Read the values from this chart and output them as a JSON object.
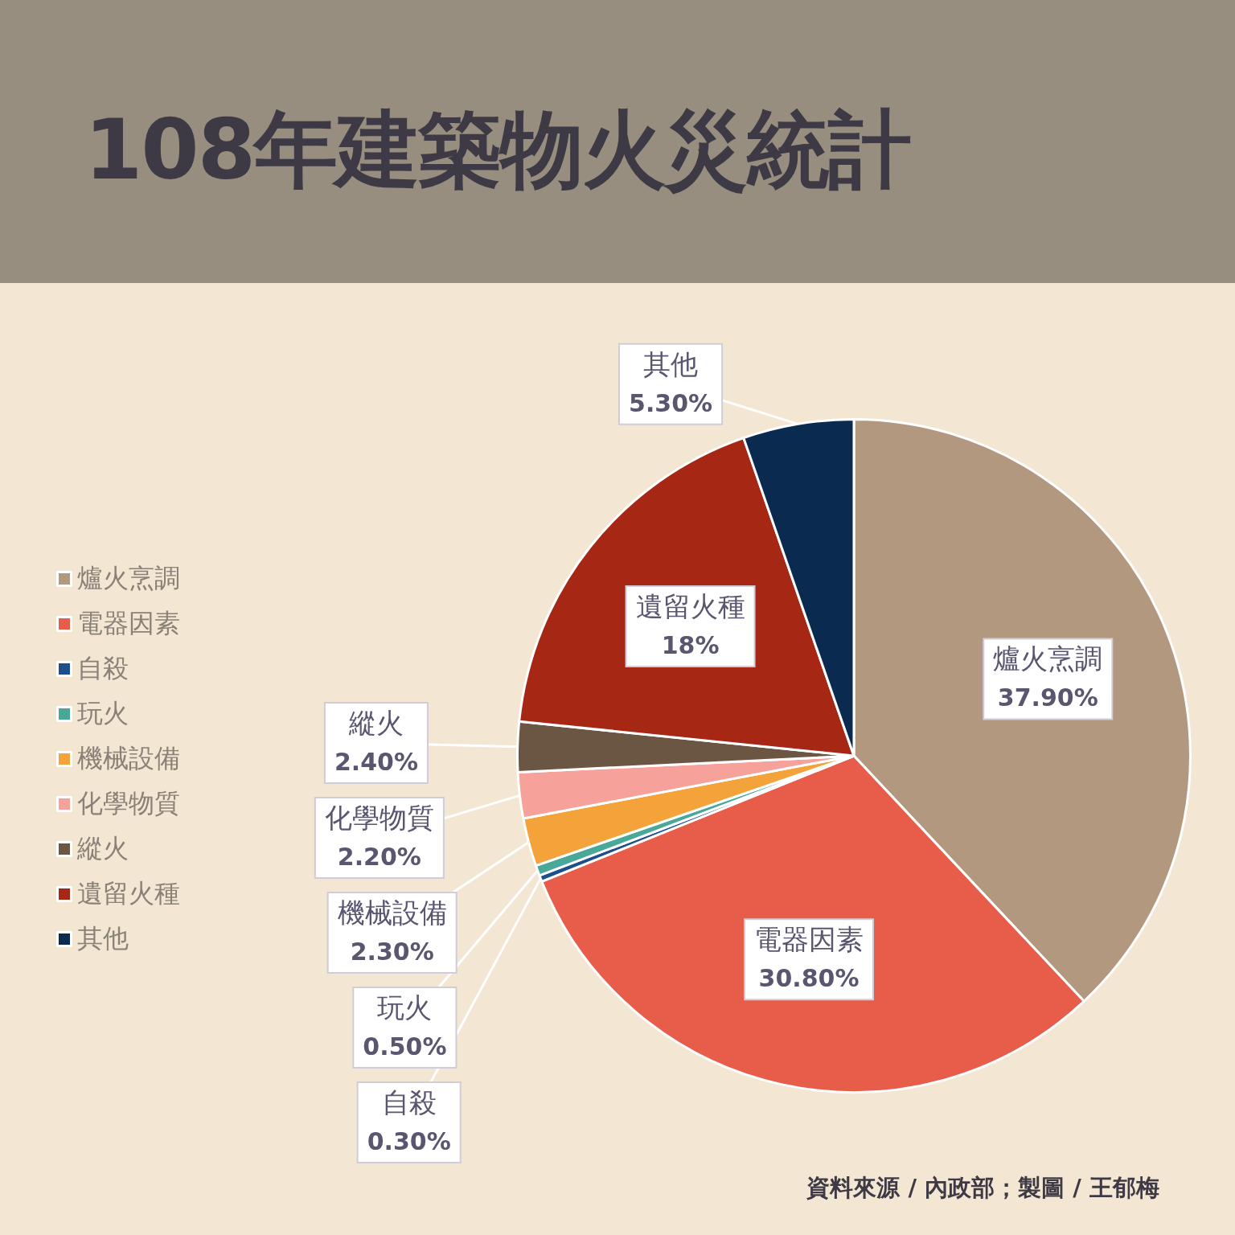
{
  "chart_data": {
    "type": "pie",
    "title": "108年建築物火災統計",
    "categories": [
      "爐火烹調",
      "電器因素",
      "自殺",
      "玩火",
      "機械設備",
      "化學物質",
      "縱火",
      "遺留火種",
      "其他"
    ],
    "values": [
      37.9,
      30.8,
      0.3,
      0.5,
      2.3,
      2.2,
      2.4,
      18,
      5.3
    ],
    "colors": [
      "#b39880",
      "#e85c4a",
      "#1f4e8c",
      "#4aa898",
      "#f4a23a",
      "#f6a199",
      "#6b5643",
      "#a52714",
      "#0a2a50"
    ],
    "value_labels": [
      "37.90%",
      "30.80%",
      "0.30%",
      "0.50%",
      "2.30%",
      "2.20%",
      "2.40%",
      "18%",
      "5.30%"
    ],
    "legend": "left",
    "annotations": [
      "資料來源 / 內政部；製圖 / 王郁梅"
    ]
  }
}
